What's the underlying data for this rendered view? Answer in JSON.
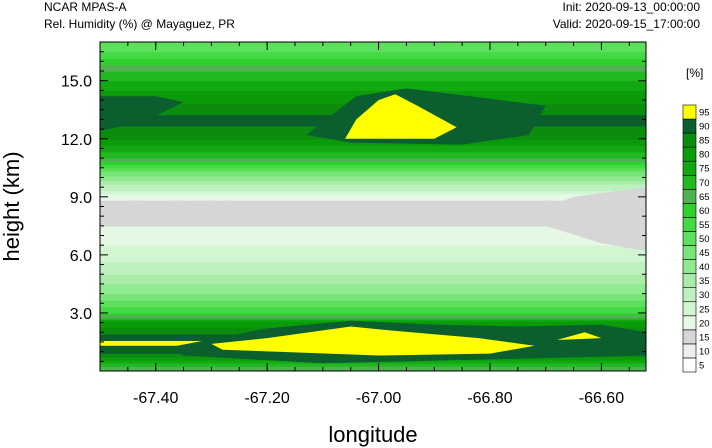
{
  "header": {
    "left_title": "NCAR MPAS-A",
    "left_subtitle": "Rel. Humidity (%) @ Mayaguez, PR",
    "init": "Init: 2020-09-13_00:00:00",
    "valid": "Valid: 2020-09-15_17:00:00"
  },
  "chart_data": {
    "type": "heatmap",
    "title": "Rel. Humidity (%) @ Mayaguez, PR",
    "xlabel": "longitude",
    "ylabel": "height (km)",
    "xlim": [
      -67.5,
      -66.52
    ],
    "ylim": [
      0,
      17.0
    ],
    "x_ticks": [
      -67.4,
      -67.2,
      -67.0,
      -66.8,
      -66.6
    ],
    "x_tick_labels": [
      "-67.40",
      "-67.20",
      "-67.00",
      "-66.80",
      "-66.60"
    ],
    "y_ticks": [
      3,
      6,
      9,
      12,
      15
    ],
    "y_tick_labels": [
      "3.0",
      "6.0",
      "9.0",
      "12.0",
      "15.0"
    ],
    "units_label": "[%]",
    "levels": [
      5,
      10,
      15,
      20,
      25,
      30,
      35,
      40,
      45,
      50,
      55,
      60,
      65,
      70,
      75,
      80,
      85,
      90,
      95
    ],
    "level_labels": [
      "5",
      "10",
      "15",
      "20",
      "25",
      "30",
      "35",
      "40",
      "45",
      "50",
      "55",
      "60",
      "65",
      "70",
      "75",
      "80",
      "85",
      "90",
      "95"
    ],
    "colors": [
      "#ffffff",
      "#eeeeee",
      "#d6d6d6",
      "#e4f8e4",
      "#d2f5d2",
      "#bff0bf",
      "#a8eca8",
      "#90ea90",
      "#78e578",
      "#5de05d",
      "#44da44",
      "#2fd12f",
      "#52b152",
      "#22b822",
      "#12a812",
      "#0a9a0a",
      "#0c8c0c",
      "#0b5e2e",
      "#ffff00"
    ],
    "profile": [
      {
        "z": 0.0,
        "rh": 62
      },
      {
        "z": 0.5,
        "rh": 78
      },
      {
        "z": 1.0,
        "rh": 92
      },
      {
        "z": 1.5,
        "rh": 96
      },
      {
        "z": 2.0,
        "rh": 88
      },
      {
        "z": 2.5,
        "rh": 82
      },
      {
        "z": 3.0,
        "rh": 60
      },
      {
        "z": 3.5,
        "rh": 52
      },
      {
        "z": 4.0,
        "rh": 45
      },
      {
        "z": 5.0,
        "rh": 35
      },
      {
        "z": 6.0,
        "rh": 28
      },
      {
        "z": 7.0,
        "rh": 22
      },
      {
        "z": 8.0,
        "rh": 18
      },
      {
        "z": 8.5,
        "rh": 16
      },
      {
        "z": 9.0,
        "rh": 22
      },
      {
        "z": 10.0,
        "rh": 42
      },
      {
        "z": 10.5,
        "rh": 55
      },
      {
        "z": 11.0,
        "rh": 70
      },
      {
        "z": 12.0,
        "rh": 85
      },
      {
        "z": 13.0,
        "rh": 92
      },
      {
        "z": 13.5,
        "rh": 88
      },
      {
        "z": 14.5,
        "rh": 80
      },
      {
        "z": 15.5,
        "rh": 70
      },
      {
        "z": 16.0,
        "rh": 62
      },
      {
        "z": 16.5,
        "rh": 55
      },
      {
        "z": 17.0,
        "rh": 50
      }
    ],
    "features": [
      {
        "name": "upper-yellow",
        "level": 95,
        "points": [
          [
            -67.06,
            12.0
          ],
          [
            -67.04,
            13.0
          ],
          [
            -67.0,
            14.0
          ],
          [
            -66.97,
            14.3
          ],
          [
            -66.93,
            13.7
          ],
          [
            -66.86,
            12.6
          ],
          [
            -66.9,
            12.0
          ],
          [
            -67.06,
            12.0
          ]
        ]
      },
      {
        "name": "upper-dark-right",
        "level": 90,
        "points": [
          [
            -67.13,
            12.2
          ],
          [
            -67.04,
            14.2
          ],
          [
            -66.95,
            14.6
          ],
          [
            -66.78,
            14.0
          ],
          [
            -66.7,
            13.7
          ],
          [
            -66.73,
            12.2
          ],
          [
            -66.85,
            11.7
          ],
          [
            -67.05,
            11.8
          ],
          [
            -67.13,
            12.2
          ]
        ]
      },
      {
        "name": "upper-dark-left",
        "level": 90,
        "points": [
          [
            -67.5,
            12.4
          ],
          [
            -67.5,
            14.2
          ],
          [
            -67.4,
            14.2
          ],
          [
            -67.35,
            13.9
          ],
          [
            -67.42,
            12.9
          ],
          [
            -67.5,
            12.4
          ]
        ]
      },
      {
        "name": "lower-yellow",
        "level": 95,
        "points": [
          [
            -67.3,
            1.4
          ],
          [
            -67.2,
            1.7
          ],
          [
            -67.05,
            2.3
          ],
          [
            -66.98,
            2.1
          ],
          [
            -66.82,
            1.7
          ],
          [
            -66.72,
            1.3
          ],
          [
            -66.8,
            0.9
          ],
          [
            -67.0,
            0.8
          ],
          [
            -67.28,
            1.1
          ],
          [
            -67.3,
            1.4
          ]
        ]
      },
      {
        "name": "lower-yellow-small",
        "level": 95,
        "points": [
          [
            -66.68,
            1.6
          ],
          [
            -66.63,
            2.0
          ],
          [
            -66.6,
            1.7
          ],
          [
            -66.68,
            1.6
          ]
        ]
      },
      {
        "name": "lower-dark",
        "level": 90,
        "points": [
          [
            -67.38,
            1.2
          ],
          [
            -67.2,
            2.2
          ],
          [
            -67.05,
            2.6
          ],
          [
            -66.9,
            2.4
          ],
          [
            -66.75,
            2.3
          ],
          [
            -66.6,
            2.4
          ],
          [
            -66.52,
            2.0
          ],
          [
            -66.52,
            0.8
          ],
          [
            -66.8,
            0.6
          ],
          [
            -67.1,
            0.4
          ],
          [
            -67.35,
            0.8
          ],
          [
            -67.38,
            1.2
          ]
        ]
      },
      {
        "name": "grey-right",
        "level": 15,
        "points": [
          [
            -66.72,
            8.2
          ],
          [
            -66.65,
            9.0
          ],
          [
            -66.52,
            9.5
          ],
          [
            -66.52,
            6.2
          ],
          [
            -66.6,
            6.6
          ],
          [
            -66.7,
            7.5
          ],
          [
            -66.72,
            8.2
          ]
        ]
      },
      {
        "name": "grey-left",
        "level": 15,
        "points": [
          [
            -67.45,
            8.5
          ],
          [
            -67.32,
            8.8
          ],
          [
            -67.25,
            8.4
          ],
          [
            -67.45,
            8.5
          ]
        ]
      }
    ]
  }
}
